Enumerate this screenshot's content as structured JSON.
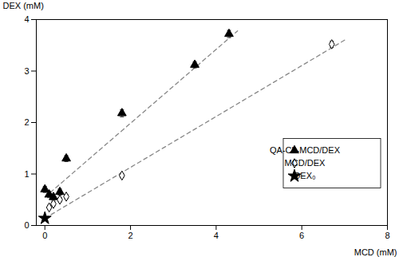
{
  "chart_data": {
    "type": "scatter",
    "xlabel": "MCD (mM)",
    "ylabel": "DEX (mM)",
    "xlim": [
      -0.2,
      8
    ],
    "ylim": [
      0,
      4
    ],
    "xticks": [
      0,
      2,
      4,
      6,
      8
    ],
    "yticks": [
      0,
      1,
      2,
      3,
      4
    ],
    "grid": false,
    "legend": "lower right",
    "series": [
      {
        "type": "line",
        "line_style": "dashed",
        "color": "#888888",
        "x": [
          0.0,
          4.5
        ],
        "values": [
          0.55,
          3.78
        ]
      },
      {
        "type": "line",
        "line_style": "dashed",
        "color": "#888888",
        "x": [
          0.0,
          7.0
        ],
        "values": [
          0.14,
          3.6
        ]
      },
      {
        "name": "QA-Ch-MCD/DEX",
        "type": "scatter",
        "marker": "triangle",
        "color": "#000000",
        "x": [
          0.0,
          0.1,
          0.2,
          0.35,
          0.5,
          1.8,
          3.5,
          4.3
        ],
        "values": [
          0.7,
          0.6,
          0.55,
          0.65,
          1.3,
          2.18,
          3.12,
          3.72
        ],
        "yerr": [
          0.06,
          0.06,
          0.06,
          0.06,
          0.06,
          0.07,
          0.06,
          0.07
        ]
      },
      {
        "name": "MCD/DEX",
        "type": "scatter",
        "marker": "open_diamond",
        "color": "#000000",
        "x": [
          0.1,
          0.2,
          0.35,
          0.5,
          1.8,
          6.7
        ],
        "values": [
          0.35,
          0.42,
          0.5,
          0.56,
          0.97,
          3.52
        ],
        "yerr": [
          0.04,
          0.04,
          0.04,
          0.04,
          0.04,
          0.06
        ]
      },
      {
        "name": "DEX₀",
        "type": "scatter",
        "marker": "star",
        "color": "#000000",
        "x": [
          0.0
        ],
        "values": [
          0.14
        ],
        "yerr": [
          0.02
        ]
      }
    ]
  }
}
